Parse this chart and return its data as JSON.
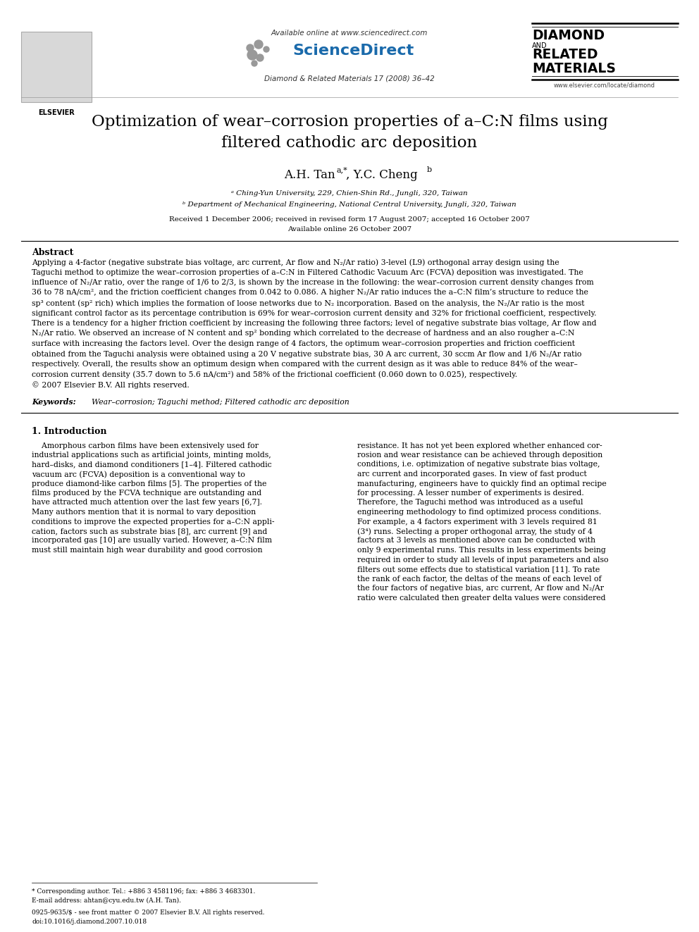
{
  "page_width": 9.92,
  "page_height": 13.23,
  "dpi": 100,
  "background_color": "#ffffff",
  "header": {
    "available_online": "Available online at www.sciencedirect.com",
    "journal_name": "ScienceDirect",
    "journal_info": "Diamond & Related Materials 17 (2008) 36–42",
    "journal_logo_lines": [
      "DIAMOND",
      "AND",
      "RELATED",
      "MATERIALS"
    ],
    "website": "www.elsevier.com/locate/diamond"
  },
  "title_line1": "Optimization of wear–corrosion properties of a–C:N films using",
  "title_line2": "filtered cathodic arc deposition",
  "affil_a": "ᵃ Ching-Yun University, 229, Chien-Shin Rd., Jungli, 320, Taiwan",
  "affil_b": "ᵇ Department of Mechanical Engineering, National Central University, Jungli, 320, Taiwan",
  "dates": "Received 1 December 2006; received in revised form 17 August 2007; accepted 16 October 2007",
  "available": "Available online 26 October 2007",
  "abstract_title": "Abstract",
  "keywords_label": "Keywords:",
  "keywords_text": "Wear–corrosion; Taguchi method; Filtered cathodic arc deposition",
  "section1_title": "1. Introduction",
  "footnote_line1": "* Corresponding author. Tel.: +886 3 4581196; fax: +886 3 4683301.",
  "footnote_line2": "E-mail address: ahtan@cyu.edu.tw (A.H. Tan).",
  "copyright1": "0925-9635/$ - see front matter © 2007 Elsevier B.V. All rights reserved.",
  "copyright2": "doi:10.1016/j.diamond.2007.10.018",
  "abstract_lines": [
    "Applying a 4-factor (negative substrate bias voltage, arc current, Ar flow and N₂/Ar ratio) 3-level (L9) orthogonal array design using the",
    "Taguchi method to optimize the wear–corrosion properties of a–C:N in Filtered Cathodic Vacuum Arc (FCVA) deposition was investigated. The",
    "influence of N₂/Ar ratio, over the range of 1/6 to 2/3, is shown by the increase in the following: the wear–corrosion current density changes from",
    "36 to 78 nA/cm², and the friction coefficient changes from 0.042 to 0.086. A higher N₂/Ar ratio induces the a–C:N film’s structure to reduce the",
    "sp³ content (sp² rich) which implies the formation of loose networks due to N₂ incorporation. Based on the analysis, the N₂/Ar ratio is the most",
    "significant control factor as its percentage contribution is 69% for wear–corrosion current density and 32% for frictional coefficient, respectively.",
    "There is a tendency for a higher friction coefficient by increasing the following three factors; level of negative substrate bias voltage, Ar flow and",
    "N₂/Ar ratio. We observed an increase of N content and sp² bonding which correlated to the decrease of hardness and an also rougher a–C:N",
    "surface with increasing the factors level. Over the design range of 4 factors, the optimum wear–corrosion properties and friction coefficient",
    "obtained from the Taguchi analysis were obtained using a 20 V negative substrate bias, 30 A arc current, 30 sccm Ar flow and 1/6 N₂/Ar ratio",
    "respectively. Overall, the results show an optimum design when compared with the current design as it was able to reduce 84% of the wear–",
    "corrosion current density (35.7 down to 5.6 nA/cm²) and 58% of the frictional coefficient (0.060 down to 0.025), respectively.",
    "© 2007 Elsevier B.V. All rights reserved."
  ],
  "col1_lines": [
    "    Amorphous carbon films have been extensively used for",
    "industrial applications such as artificial joints, minting molds,",
    "hard–disks, and diamond conditioners [1–4]. Filtered cathodic",
    "vacuum arc (FCVA) deposition is a conventional way to",
    "produce diamond-like carbon films [5]. The properties of the",
    "films produced by the FCVA technique are outstanding and",
    "have attracted much attention over the last few years [6,7].",
    "Many authors mention that it is normal to vary deposition",
    "conditions to improve the expected properties for a–C:N appli-",
    "cation, factors such as substrate bias [8], arc current [9] and",
    "incorporated gas [10] are usually varied. However, a–C:N film",
    "must still maintain high wear durability and good corrosion"
  ],
  "col2_lines": [
    "resistance. It has not yet been explored whether enhanced cor-",
    "rosion and wear resistance can be achieved through deposition",
    "conditions, i.e. optimization of negative substrate bias voltage,",
    "arc current and incorporated gases. In view of fast product",
    "manufacturing, engineers have to quickly find an optimal recipe",
    "for processing. A lesser number of experiments is desired.",
    "Therefore, the Taguchi method was introduced as a useful",
    "engineering methodology to find optimized process conditions.",
    "For example, a 4 factors experiment with 3 levels required 81",
    "(3⁴) runs. Selecting a proper orthogonal array, the study of 4",
    "factors at 3 levels as mentioned above can be conducted with",
    "only 9 experimental runs. This results in less experiments being",
    "required in order to study all levels of input parameters and also",
    "filters out some effects due to statistical variation [11]. To rate",
    "the rank of each factor, the deltas of the means of each level of",
    "the four factors of negative bias, arc current, Ar flow and N₂/Ar",
    "ratio were calculated then greater delta values were considered"
  ]
}
